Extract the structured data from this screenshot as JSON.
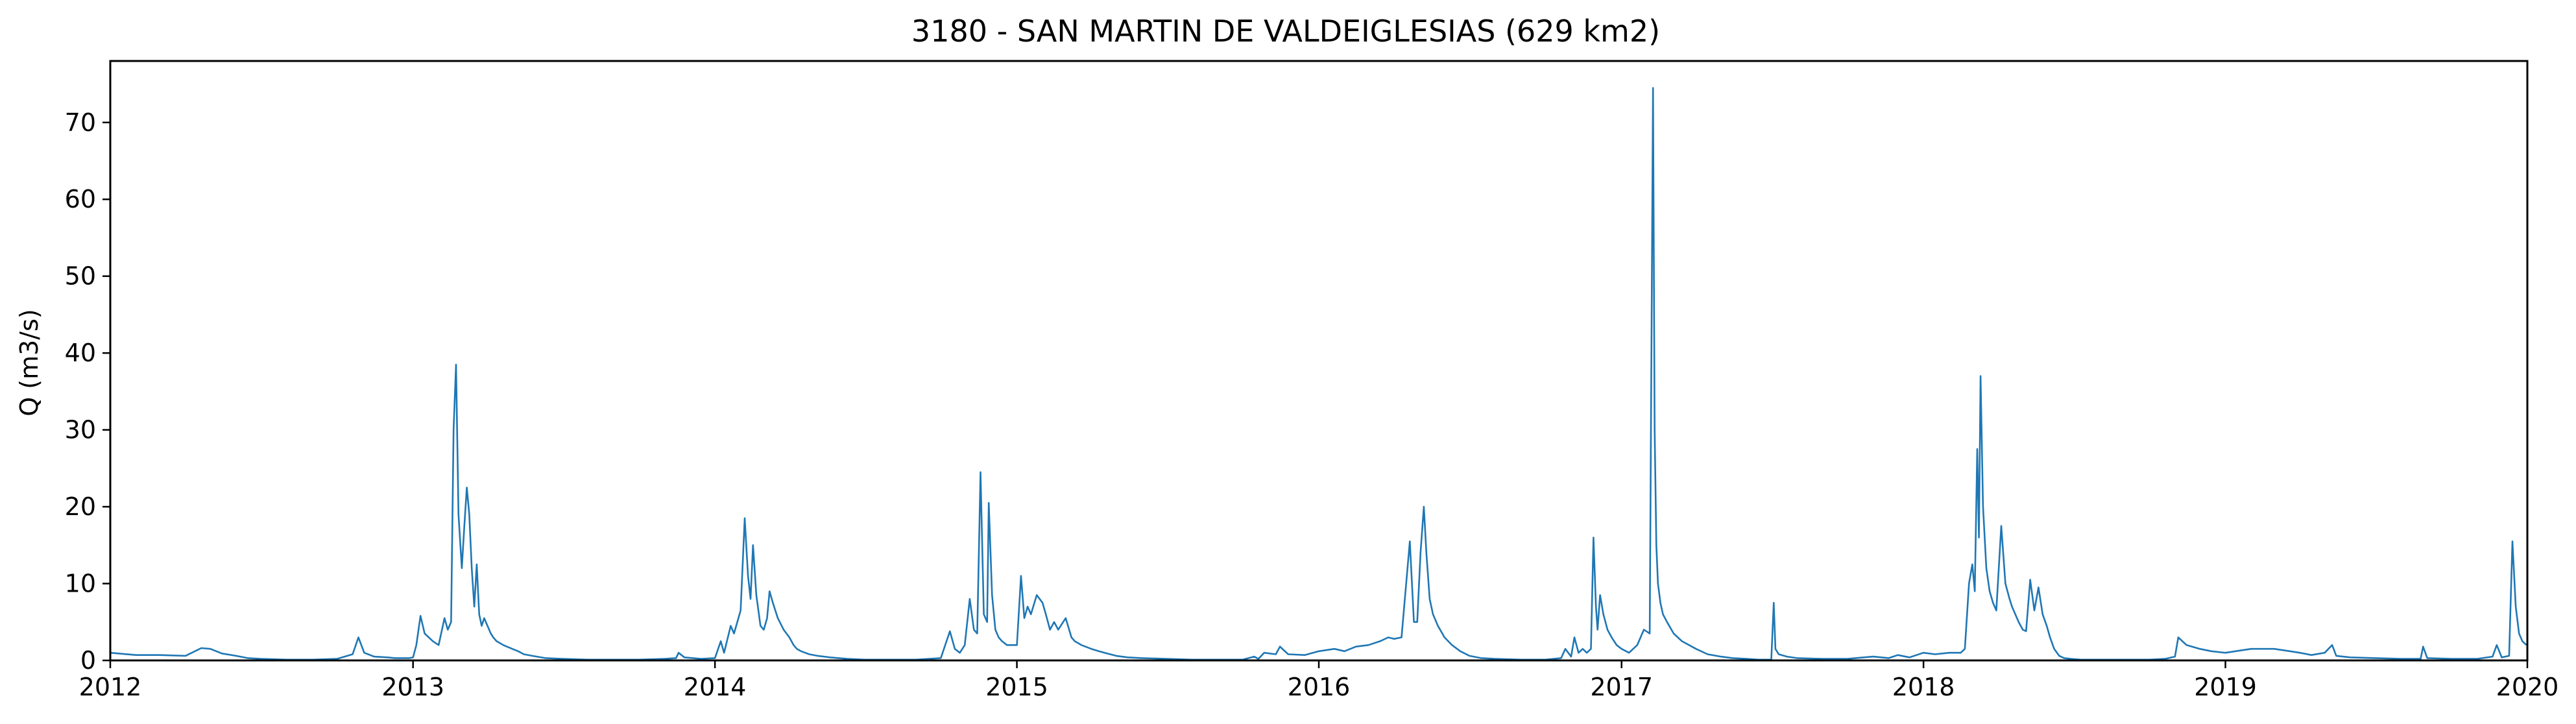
{
  "chart_data": {
    "type": "line",
    "title": "3180 - SAN MARTIN DE VALDEIGLESIAS (629 km2)",
    "xlabel": "",
    "ylabel": "Q (m3/s)",
    "xlim": [
      "2012-01-01",
      "2020-01-01"
    ],
    "ylim": [
      0,
      78
    ],
    "x_ticks": [
      "2012",
      "2013",
      "2014",
      "2015",
      "2016",
      "2017",
      "2018",
      "2019",
      "2020"
    ],
    "y_ticks": [
      0,
      10,
      20,
      30,
      40,
      50,
      60,
      70
    ],
    "grid": false,
    "legend": "none",
    "line_color": "#1f77b4",
    "series": [
      {
        "x": [
          "2012-01-01",
          "2012-02-01",
          "2012-03-01",
          "2012-04-01",
          "2012-04-20",
          "2012-05-01",
          "2012-05-15",
          "2012-06-01",
          "2012-06-15",
          "2012-07-01",
          "2012-08-01",
          "2012-09-01",
          "2012-10-01",
          "2012-10-20",
          "2012-10-27",
          "2012-11-03",
          "2012-11-15",
          "2012-12-01",
          "2012-12-10",
          "2012-12-20",
          "2012-12-28",
          "2013-01-01",
          "2013-01-05",
          "2013-01-10",
          "2013-01-15",
          "2013-01-25",
          "2013-02-01",
          "2013-02-08",
          "2013-02-12",
          "2013-02-16",
          "2013-02-19",
          "2013-02-22",
          "2013-02-25",
          "2013-03-01",
          "2013-03-04",
          "2013-03-07",
          "2013-03-10",
          "2013-03-13",
          "2013-03-16",
          "2013-03-19",
          "2013-03-22",
          "2013-03-25",
          "2013-03-28",
          "2013-04-01",
          "2013-04-05",
          "2013-04-08",
          "2013-04-12",
          "2013-04-20",
          "2013-05-01",
          "2013-05-08",
          "2013-05-15",
          "2013-05-25",
          "2013-06-10",
          "2013-07-01",
          "2013-08-01",
          "2013-09-01",
          "2013-10-01",
          "2013-11-01",
          "2013-11-15",
          "2013-11-18",
          "2013-11-25",
          "2013-12-15",
          "2014-01-01",
          "2014-01-08",
          "2014-01-12",
          "2014-01-20",
          "2014-01-24",
          "2014-02-01",
          "2014-02-06",
          "2014-02-10",
          "2014-02-13",
          "2014-02-16",
          "2014-02-20",
          "2014-02-25",
          "2014-03-01",
          "2014-03-05",
          "2014-03-08",
          "2014-03-12",
          "2014-03-18",
          "2014-03-25",
          "2014-04-01",
          "2014-04-06",
          "2014-04-10",
          "2014-04-15",
          "2014-04-25",
          "2014-05-05",
          "2014-05-20",
          "2014-06-10",
          "2014-07-01",
          "2014-08-01",
          "2014-09-01",
          "2014-10-01",
          "2014-10-12",
          "2014-10-18",
          "2014-10-24",
          "2014-10-30",
          "2014-11-05",
          "2014-11-10",
          "2014-11-14",
          "2014-11-18",
          "2014-11-22",
          "2014-11-26",
          "2014-11-28",
          "2014-12-02",
          "2014-12-06",
          "2014-12-10",
          "2014-12-14",
          "2014-12-20",
          "2014-12-26",
          "2015-01-01",
          "2015-01-06",
          "2015-01-10",
          "2015-01-14",
          "2015-01-18",
          "2015-01-25",
          "2015-02-01",
          "2015-02-05",
          "2015-02-10",
          "2015-02-15",
          "2015-02-20",
          "2015-03-01",
          "2015-03-08",
          "2015-03-12",
          "2015-03-20",
          "2015-04-01",
          "2015-04-10",
          "2015-04-20",
          "2015-05-01",
          "2015-05-15",
          "2015-06-01",
          "2015-07-01",
          "2015-08-01",
          "2015-09-01",
          "2015-10-01",
          "2015-10-15",
          "2015-10-20",
          "2015-10-27",
          "2015-11-10",
          "2015-11-15",
          "2015-11-25",
          "2015-12-15",
          "2016-01-01",
          "2016-01-20",
          "2016-02-01",
          "2016-02-15",
          "2016-03-01",
          "2016-03-15",
          "2016-03-25",
          "2016-04-01",
          "2016-04-10",
          "2016-04-20",
          "2016-04-25",
          "2016-04-29",
          "2016-05-03",
          "2016-05-07",
          "2016-05-10",
          "2016-05-14",
          "2016-05-18",
          "2016-05-24",
          "2016-06-01",
          "2016-06-10",
          "2016-06-20",
          "2016-07-01",
          "2016-07-15",
          "2016-08-01",
          "2016-09-01",
          "2016-10-01",
          "2016-10-20",
          "2016-10-25",
          "2016-11-01",
          "2016-11-05",
          "2016-11-10",
          "2016-11-15",
          "2016-11-20",
          "2016-11-25",
          "2016-11-28",
          "2016-12-01",
          "2016-12-03",
          "2016-12-06",
          "2016-12-10",
          "2016-12-15",
          "2016-12-20",
          "2016-12-26",
          "2017-01-01",
          "2017-01-10",
          "2017-01-20",
          "2017-01-28",
          "2017-02-04",
          "2017-02-08",
          "2017-02-10",
          "2017-02-12",
          "2017-02-14",
          "2017-02-17",
          "2017-02-20",
          "2017-02-25",
          "2017-03-05",
          "2017-03-15",
          "2017-04-01",
          "2017-04-15",
          "2017-05-01",
          "2017-05-15",
          "2017-06-01",
          "2017-06-15",
          "2017-07-01",
          "2017-07-04",
          "2017-07-06",
          "2017-07-10",
          "2017-07-20",
          "2017-08-01",
          "2017-09-01",
          "2017-10-01",
          "2017-11-01",
          "2017-11-20",
          "2017-12-01",
          "2017-12-15",
          "2018-01-01",
          "2018-01-15",
          "2018-02-01",
          "2018-02-15",
          "2018-02-20",
          "2018-02-25",
          "2018-03-01",
          "2018-03-04",
          "2018-03-07",
          "2018-03-09",
          "2018-03-11",
          "2018-03-14",
          "2018-03-18",
          "2018-03-22",
          "2018-03-26",
          "2018-03-30",
          "2018-04-05",
          "2018-04-10",
          "2018-04-15",
          "2018-04-18",
          "2018-04-22",
          "2018-04-26",
          "2018-05-01",
          "2018-05-05",
          "2018-05-10",
          "2018-05-15",
          "2018-05-20",
          "2018-05-25",
          "2018-05-30",
          "2018-06-03",
          "2018-06-08",
          "2018-06-14",
          "2018-06-20",
          "2018-06-28",
          "2018-07-10",
          "2018-08-01",
          "2018-09-01",
          "2018-10-01",
          "2018-10-20",
          "2018-11-01",
          "2018-11-05",
          "2018-11-15",
          "2018-12-01",
          "2018-12-15",
          "2019-01-01",
          "2019-02-01",
          "2019-03-01",
          "2019-03-20",
          "2019-04-01",
          "2019-04-15",
          "2019-05-01",
          "2019-05-10",
          "2019-05-15",
          "2019-06-01",
          "2019-07-01",
          "2019-08-01",
          "2019-08-25",
          "2019-08-28",
          "2019-09-02",
          "2019-10-01",
          "2019-11-01",
          "2019-11-20",
          "2019-11-25",
          "2019-12-01",
          "2019-12-10",
          "2019-12-14",
          "2019-12-18",
          "2019-12-22",
          "2019-12-26",
          "2019-12-31"
        ],
        "values": [
          1.0,
          0.7,
          0.7,
          0.6,
          1.6,
          1.5,
          0.9,
          0.6,
          0.3,
          0.2,
          0.1,
          0.1,
          0.2,
          0.8,
          3.0,
          1.0,
          0.5,
          0.4,
          0.3,
          0.3,
          0.3,
          0.4,
          2.0,
          5.8,
          3.5,
          2.5,
          2.0,
          5.5,
          4.0,
          5.0,
          30.0,
          38.5,
          19.0,
          12.0,
          17.5,
          22.5,
          19.0,
          12.0,
          7.0,
          12.5,
          6.0,
          4.5,
          5.5,
          4.5,
          3.5,
          3.0,
          2.5,
          2.0,
          1.5,
          1.2,
          0.8,
          0.6,
          0.3,
          0.2,
          0.1,
          0.1,
          0.1,
          0.2,
          0.3,
          1.0,
          0.4,
          0.2,
          0.3,
          2.5,
          1.0,
          4.5,
          3.5,
          6.5,
          18.5,
          11.0,
          8.0,
          15.0,
          8.5,
          4.5,
          4.0,
          5.5,
          9.0,
          7.5,
          5.5,
          4.0,
          3.0,
          2.0,
          1.5,
          1.2,
          0.8,
          0.6,
          0.4,
          0.2,
          0.1,
          0.1,
          0.1,
          0.3,
          3.8,
          1.5,
          1.0,
          2.0,
          8.0,
          4.0,
          3.5,
          24.5,
          6.0,
          5.0,
          20.5,
          8.5,
          4.0,
          3.0,
          2.5,
          2.0,
          2.0,
          2.0,
          11.0,
          5.5,
          7.0,
          6.0,
          8.5,
          7.5,
          6.0,
          4.0,
          5.0,
          4.0,
          5.5,
          3.0,
          2.5,
          2.0,
          1.5,
          1.2,
          0.9,
          0.6,
          0.4,
          0.3,
          0.2,
          0.1,
          0.1,
          0.1,
          0.5,
          0.2,
          1.0,
          0.8,
          1.8,
          0.8,
          0.7,
          1.2,
          1.5,
          1.2,
          1.8,
          2.0,
          2.5,
          3.0,
          2.8,
          3.0,
          15.5,
          5.0,
          5.0,
          14.0,
          20.0,
          14.0,
          8.0,
          6.0,
          4.5,
          3.0,
          2.0,
          1.2,
          0.6,
          0.3,
          0.2,
          0.1,
          0.1,
          0.3,
          1.5,
          0.5,
          3.0,
          1.0,
          1.5,
          1.0,
          1.5,
          16.0,
          7.0,
          4.0,
          8.5,
          6.0,
          4.0,
          3.0,
          2.0,
          1.5,
          1.0,
          2.0,
          4.0,
          3.5,
          74.5,
          30.0,
          15.0,
          10.0,
          7.5,
          6.0,
          5.0,
          3.5,
          2.5,
          1.5,
          0.8,
          0.5,
          0.3,
          0.2,
          0.1,
          0.1,
          7.5,
          1.5,
          0.8,
          0.5,
          0.3,
          0.2,
          0.2,
          0.5,
          0.3,
          0.7,
          0.4,
          1.0,
          0.8,
          1.0,
          1.0,
          1.5,
          10.0,
          12.5,
          9.0,
          27.5,
          16.0,
          37.0,
          20.0,
          12.0,
          9.0,
          7.5,
          6.5,
          17.5,
          10.0,
          8.0,
          7.0,
          6.0,
          5.0,
          4.0,
          3.8,
          10.5,
          6.5,
          9.5,
          6.0,
          4.5,
          3.0,
          1.5,
          0.6,
          0.3,
          0.2,
          0.1,
          0.1,
          0.1,
          0.1,
          0.2,
          0.5,
          3.0,
          2.0,
          1.5,
          1.2,
          1.0,
          1.5,
          1.5,
          1.2,
          1.0,
          0.7,
          1.0,
          2.0,
          0.6,
          0.4,
          0.3,
          0.2,
          0.2,
          1.8,
          0.3,
          0.2,
          0.2,
          0.5,
          2.0,
          0.4,
          0.6,
          15.5,
          7.0,
          3.5,
          2.5,
          2.0
        ]
      }
    ]
  }
}
